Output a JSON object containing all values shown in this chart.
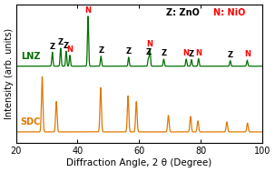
{
  "xlim": [
    20,
    100
  ],
  "xlabel": "Diffraction Angle, 2 θ (Degree)",
  "ylabel": "Intensity (arb. units)",
  "lnz_label": "LNZ",
  "sdc_label": "SDC",
  "lnz_color": "#007000",
  "sdc_color": "#E07800",
  "lnz_peaks_Z": [
    31.8,
    34.5,
    36.3,
    47.6,
    56.6,
    63.0,
    68.0,
    77.0,
    89.6
  ],
  "lnz_peaks_N": [
    37.5,
    43.4,
    63.5,
    75.3,
    79.3,
    95.1
  ],
  "lnz_heights_Z": [
    0.28,
    0.36,
    0.3,
    0.2,
    0.18,
    0.15,
    0.14,
    0.13,
    0.11
  ],
  "lnz_heights_N": [
    0.22,
    1.0,
    0.32,
    0.14,
    0.15,
    0.12
  ],
  "sdc_peaks": [
    28.5,
    33.1,
    47.5,
    56.4,
    59.1,
    69.5,
    76.7,
    79.1,
    88.5,
    95.2
  ],
  "sdc_heights": [
    1.0,
    0.55,
    0.8,
    0.65,
    0.55,
    0.3,
    0.28,
    0.2,
    0.18,
    0.16
  ],
  "legend_text_Z": "Z: ZnO",
  "legend_text_N": "N: NiO",
  "bg_color": "#ffffff",
  "grid_color": "#dddddd"
}
